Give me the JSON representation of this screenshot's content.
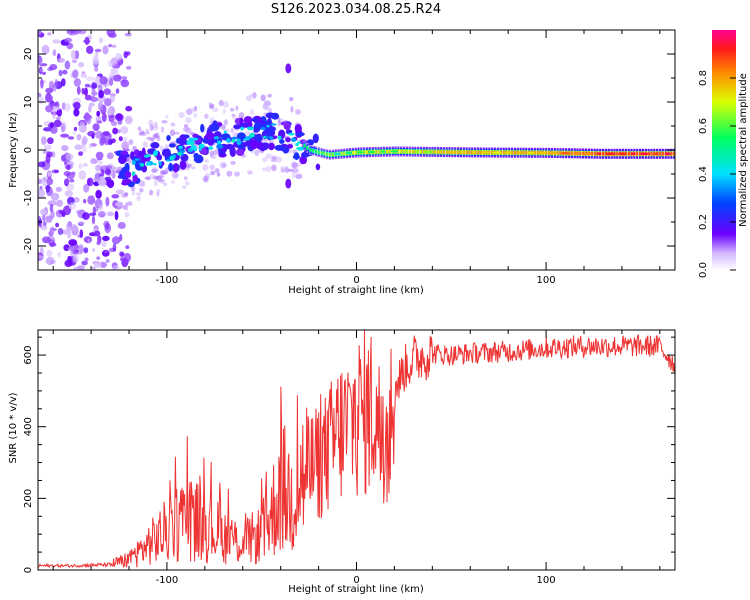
{
  "figure": {
    "title": "S126.2023.034.08.25.R24"
  },
  "colors": {
    "snr_line": "#ee3333",
    "axes": "#000000"
  },
  "chart_data": [
    {
      "type": "heatmap",
      "panel": "spectrogram",
      "xlabel": "Height of straight line (km)",
      "ylabel": "Frequency (Hz)",
      "xlim": [
        -168,
        168
      ],
      "ylim": [
        -25,
        25
      ],
      "x_ticks": [
        -100,
        0,
        100
      ],
      "x_tick_labels": [
        "-100",
        "0",
        "100"
      ],
      "y_ticks": [
        -20,
        -10,
        0,
        10,
        20
      ],
      "y_tick_labels": [
        "-20",
        "-10",
        "0",
        "10",
        "20"
      ],
      "colorbar": {
        "label": "Normalized spectral amplitude",
        "range": [
          0,
          1
        ],
        "ticks": [
          0.0,
          0.2,
          0.4,
          0.6,
          0.8
        ],
        "tick_labels": [
          "0.0",
          "0.2",
          "0.4",
          "0.6",
          "0.8"
        ]
      },
      "ridge": {
        "x": [
          -120,
          -100,
          -80,
          -60,
          -45,
          -35,
          -25,
          -15,
          0,
          20,
          60,
          100,
          130,
          168
        ],
        "frequency": [
          -4,
          -1,
          1.5,
          3,
          4,
          3,
          0,
          -1,
          -0.5,
          -0.3,
          -0.5,
          -0.6,
          -0.8,
          -0.8
        ],
        "amplitude": [
          0.15,
          0.2,
          0.2,
          0.2,
          0.22,
          0.2,
          0.2,
          0.35,
          0.55,
          0.55,
          0.7,
          0.7,
          0.85,
          0.85
        ]
      },
      "grid": false
    },
    {
      "type": "line",
      "panel": "snr",
      "xlabel": "Height of straight line (km)",
      "ylabel": "SNR (10 * v/v)",
      "xlim": [
        -168,
        168
      ],
      "ylim": [
        0,
        670
      ],
      "x_ticks": [
        -100,
        0,
        100
      ],
      "x_tick_labels": [
        "-100",
        "0",
        "100"
      ],
      "y_ticks": [
        0,
        200,
        400,
        600
      ],
      "y_tick_labels": [
        "0",
        "200",
        "400",
        "600"
      ],
      "series": [
        {
          "x": [
            -168,
            -150,
            -130,
            -120,
            -110,
            -100,
            -90,
            -80,
            -70,
            -60,
            -50,
            -45,
            -40,
            -35,
            -30,
            -25,
            -20,
            -15,
            -10,
            -5,
            0,
            5,
            10,
            15,
            20,
            25,
            30,
            40,
            50,
            60,
            80,
            100,
            120,
            140,
            160,
            168
          ],
          "y": [
            12,
            12,
            15,
            30,
            70,
            110,
            150,
            130,
            95,
            75,
            100,
            150,
            240,
            200,
            250,
            280,
            300,
            330,
            380,
            400,
            430,
            440,
            450,
            300,
            500,
            560,
            590,
            605,
            600,
            605,
            610,
            620,
            625,
            625,
            625,
            570
          ]
        }
      ],
      "grid": false
    }
  ]
}
